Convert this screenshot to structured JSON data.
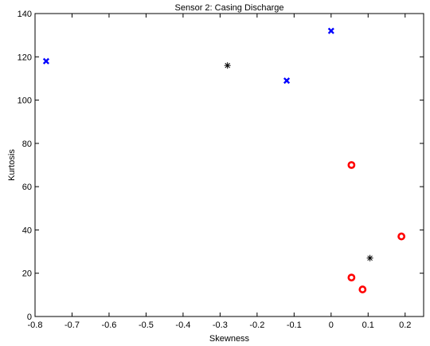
{
  "chart_data": {
    "type": "scatter",
    "title": "Sensor 2: Casing Discharge",
    "xlabel": "Skewness",
    "ylabel": "Kurtosis",
    "xlim": [
      -0.8,
      0.25
    ],
    "ylim": [
      0,
      140
    ],
    "xticks": [
      -0.8,
      -0.7,
      -0.6,
      -0.5,
      -0.4,
      -0.3,
      -0.2,
      -0.1,
      0,
      0.1,
      0.2
    ],
    "xtick_labels": [
      "-0.8",
      "-0.7",
      "-0.6",
      "-0.5",
      "-0.4",
      "-0.3",
      "-0.2",
      "-0.1",
      "0",
      "0.1",
      "0.2"
    ],
    "yticks": [
      0,
      20,
      40,
      60,
      80,
      100,
      120,
      140
    ],
    "ytick_labels": [
      "0",
      "20",
      "40",
      "60",
      "80",
      "100",
      "120",
      "140"
    ],
    "grid": false,
    "legend": "none",
    "series": [
      {
        "marker": "x",
        "color": "#0000ff",
        "points": [
          {
            "x": -0.77,
            "y": 118
          },
          {
            "x": -0.12,
            "y": 109
          },
          {
            "x": 0.0,
            "y": 132
          }
        ]
      },
      {
        "marker": "asterisk",
        "color": "#000000",
        "points": [
          {
            "x": -0.28,
            "y": 116
          },
          {
            "x": 0.105,
            "y": 27
          }
        ]
      },
      {
        "marker": "circle",
        "color": "#ff0000",
        "points": [
          {
            "x": 0.055,
            "y": 70
          },
          {
            "x": 0.19,
            "y": 37
          },
          {
            "x": 0.055,
            "y": 18
          },
          {
            "x": 0.085,
            "y": 12.5
          }
        ]
      }
    ]
  }
}
